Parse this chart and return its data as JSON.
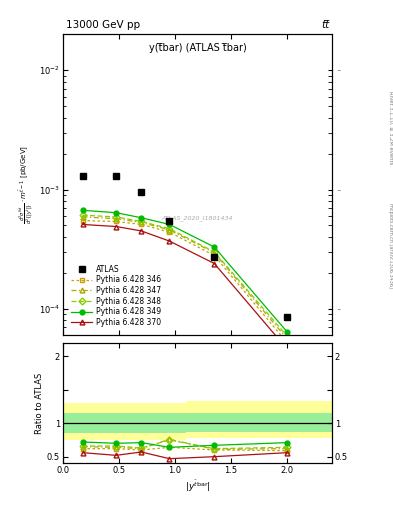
{
  "title_top": "13000 GeV pp",
  "title_right": "tt̅",
  "plot_label": "y(t̅bar) (ATLAS t̅bar)",
  "watermark": "ATLAS_2020_I1801434",
  "right_label1": "Rivet 3.1.10, ≥ 3.2M events",
  "right_label2": "mcplots.cern.ch [arXiv:1306.3436]",
  "xlim": [
    0,
    2.4
  ],
  "ylim_main": [
    6e-05,
    0.02
  ],
  "ylim_ratio": [
    0.4,
    2.2
  ],
  "atlas_x": [
    0.175,
    0.475,
    0.7,
    0.95,
    1.35,
    2.0
  ],
  "atlas_y": [
    0.0013,
    0.0013,
    0.00095,
    0.00055,
    0.00027,
    8.5e-05
  ],
  "bin_edges": [
    0.0,
    0.35,
    0.6,
    0.8,
    1.1,
    1.6,
    2.4
  ],
  "bin_centers": [
    0.175,
    0.475,
    0.7,
    0.95,
    1.35,
    2.0
  ],
  "p346_y": [
    0.00055,
    0.00054,
    0.00051,
    0.00044,
    0.00028,
    5.2e-05
  ],
  "p346_r": [
    0.62,
    0.62,
    0.6,
    0.64,
    0.6,
    0.59
  ],
  "p346_color": "#c8a000",
  "p347_y": [
    0.00059,
    0.00057,
    0.00053,
    0.00046,
    0.000295,
    5.6e-05
  ],
  "p347_r": [
    0.65,
    0.64,
    0.62,
    0.76,
    0.61,
    0.62
  ],
  "p347_color": "#aaaa00",
  "p348_y": [
    0.00061,
    0.00059,
    0.00054,
    0.00047,
    0.0003,
    5.9e-05
  ],
  "p348_r": [
    0.66,
    0.66,
    0.63,
    0.75,
    0.62,
    0.64
  ],
  "p348_color": "#88cc00",
  "p349_y": [
    0.00067,
    0.00064,
    0.00058,
    0.00051,
    0.00033,
    6.4e-05
  ],
  "p349_r": [
    0.72,
    0.7,
    0.71,
    0.64,
    0.67,
    0.71
  ],
  "p349_color": "#00bb00",
  "p370_y": [
    0.00051,
    0.00049,
    0.00045,
    0.00037,
    0.00024,
    4.6e-05
  ],
  "p370_r": [
    0.56,
    0.52,
    0.57,
    0.47,
    0.5,
    0.56
  ],
  "p370_color": "#aa1111",
  "band_y_lo": [
    0.75,
    0.75,
    0.75,
    0.75,
    0.78,
    0.78
  ],
  "band_y_hi": [
    1.3,
    1.3,
    1.3,
    1.3,
    1.33,
    1.33
  ],
  "band_g_lo": [
    0.85,
    0.85,
    0.85,
    0.85,
    0.87,
    0.87
  ],
  "band_g_hi": [
    1.15,
    1.15,
    1.15,
    1.15,
    1.15,
    1.15
  ]
}
